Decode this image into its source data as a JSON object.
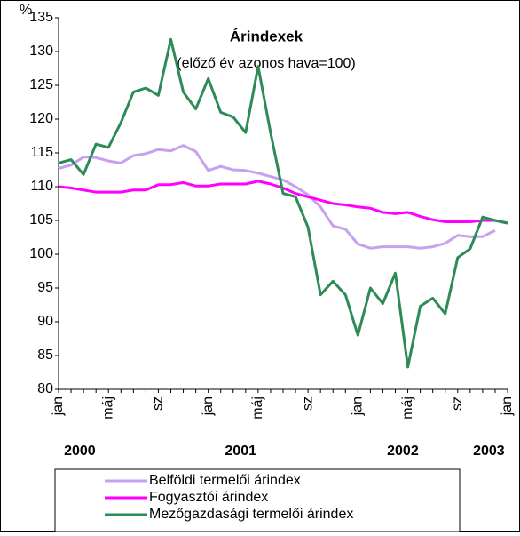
{
  "chart_data": {
    "type": "line",
    "title": "Árindexek",
    "subtitle": "(előző év azonos hava=100)",
    "y_label": "%",
    "categories": [
      "jan",
      null,
      null,
      null,
      "máj",
      null,
      null,
      null,
      "sz",
      null,
      null,
      null,
      "jan",
      null,
      null,
      null,
      "máj",
      null,
      null,
      null,
      "sz",
      null,
      null,
      null,
      "jan",
      null,
      null,
      null,
      "máj",
      null,
      null,
      null,
      "sz",
      null,
      null,
      null,
      "jan"
    ],
    "year_labels": [
      "2000",
      "2001",
      "2002",
      "2003"
    ],
    "series": [
      {
        "name": "Belföldi termelői árindex",
        "color": "#c8a0f0",
        "values": [
          112.7,
          113.2,
          114.4,
          114.3,
          113.8,
          113.5,
          114.6,
          114.9,
          115.5,
          115.3,
          116.1,
          115.2,
          112.4,
          113,
          112.5,
          112.4,
          112,
          111.5,
          111,
          110,
          108.8,
          107,
          104.2,
          103.7,
          101.5,
          100.9,
          101.1,
          101.1,
          101.1,
          100.9,
          101.1,
          101.6,
          102.8,
          102.6,
          102.6,
          103.5,
          null
        ]
      },
      {
        "name": "Fogyasztói árindex",
        "color": "#ff00ff",
        "values": [
          110,
          109.8,
          109.5,
          109.2,
          109.2,
          109.2,
          109.5,
          109.5,
          110.3,
          110.3,
          110.6,
          110.1,
          110.1,
          110.4,
          110.4,
          110.4,
          110.8,
          110.4,
          109.8,
          109,
          108.5,
          108,
          107.5,
          107.3,
          107,
          106.8,
          106.2,
          106,
          106.2,
          105.6,
          105.1,
          104.8,
          104.8,
          104.8,
          105,
          105,
          104.6
        ]
      },
      {
        "name": "Mezőgazdasági termelői árindex",
        "color": "#2e8b57",
        "values": [
          113.5,
          114,
          111.8,
          116.3,
          115.8,
          119.5,
          124,
          124.6,
          123.5,
          131.8,
          124,
          121.5,
          126,
          121,
          120.3,
          118,
          127.8,
          118,
          109,
          108.5,
          104,
          94,
          96,
          94,
          88,
          95,
          92.7,
          97.2,
          83.3,
          92.3,
          93.5,
          91.2,
          99.5,
          100.8,
          105.5,
          105,
          104.6
        ]
      }
    ],
    "ylim": [
      80,
      135
    ],
    "yticks": [
      80,
      85,
      90,
      95,
      100,
      105,
      110,
      115,
      120,
      125,
      130,
      135
    ],
    "grid": false
  }
}
